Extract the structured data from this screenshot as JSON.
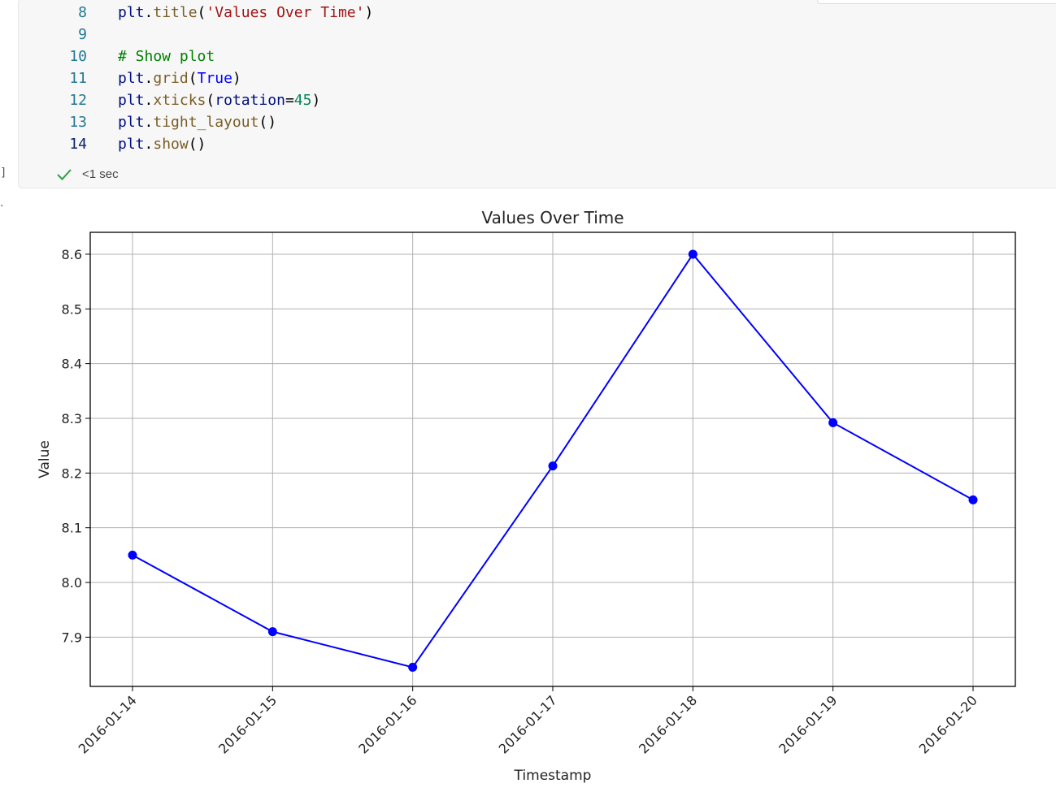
{
  "cell": {
    "lines": [
      {
        "number": "8",
        "current": false,
        "tokens": [
          [
            "var",
            "plt"
          ],
          [
            "op",
            "."
          ],
          [
            "fn",
            "title"
          ],
          [
            "op",
            "("
          ],
          [
            "str",
            "'Values Over Time'"
          ],
          [
            "op",
            ")"
          ]
        ]
      },
      {
        "number": "9",
        "current": false,
        "tokens": []
      },
      {
        "number": "10",
        "current": false,
        "tokens": [
          [
            "com",
            "# Show plot"
          ]
        ]
      },
      {
        "number": "11",
        "current": false,
        "tokens": [
          [
            "var",
            "plt"
          ],
          [
            "op",
            "."
          ],
          [
            "fn",
            "grid"
          ],
          [
            "op",
            "("
          ],
          [
            "kw",
            "True"
          ],
          [
            "op",
            ")"
          ]
        ]
      },
      {
        "number": "12",
        "current": false,
        "tokens": [
          [
            "var",
            "plt"
          ],
          [
            "op",
            "."
          ],
          [
            "fn",
            "xticks"
          ],
          [
            "op",
            "("
          ],
          [
            "var",
            "rotation"
          ],
          [
            "op",
            "="
          ],
          [
            "num",
            "45"
          ],
          [
            "op",
            ")"
          ]
        ]
      },
      {
        "number": "13",
        "current": false,
        "tokens": [
          [
            "var",
            "plt"
          ],
          [
            "op",
            "."
          ],
          [
            "fn",
            "tight_layout"
          ],
          [
            "op",
            "()"
          ]
        ]
      },
      {
        "number": "14",
        "current": true,
        "tokens": [
          [
            "var",
            "plt"
          ],
          [
            "op",
            "."
          ],
          [
            "fn",
            "show"
          ],
          [
            "op",
            "()"
          ]
        ]
      }
    ],
    "status": {
      "icon": "check-icon",
      "text": "<1 sec",
      "color": "#2ea043"
    },
    "gutter_marker": "]",
    "gutter_dot": "."
  },
  "chart_data": {
    "type": "line",
    "title": "Values Over Time",
    "xlabel": "Timestamp",
    "ylabel": "Value",
    "x": [
      "2016-01-14",
      "2016-01-15",
      "2016-01-16",
      "2016-01-17",
      "2016-01-18",
      "2016-01-19",
      "2016-01-20"
    ],
    "series": [
      {
        "values": [
          8.05,
          7.91,
          7.845,
          8.213,
          8.6,
          8.292,
          8.151
        ],
        "color": "#0000ff",
        "marker": "circle"
      }
    ],
    "yticks": [
      "7.9",
      "8.0",
      "8.1",
      "8.2",
      "8.3",
      "8.4",
      "8.5",
      "8.6"
    ],
    "ylim": [
      7.81,
      8.64
    ],
    "xtick_rotation": 45,
    "grid": true
  }
}
